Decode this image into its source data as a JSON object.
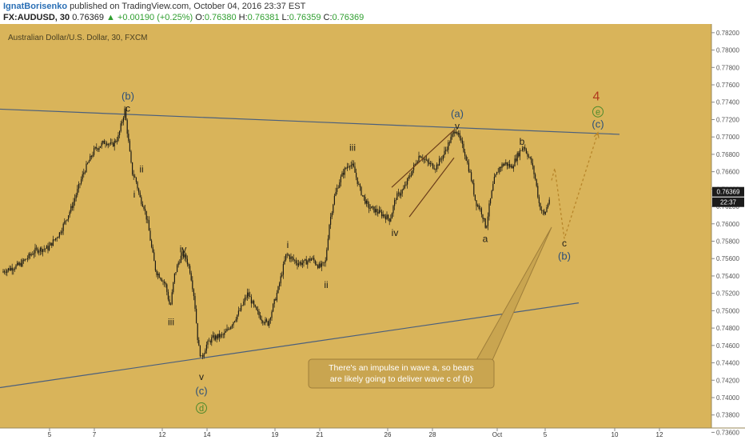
{
  "header": {
    "author": "IgnatBorisenko",
    "published": "published on TradingView.com, October 04, 2016 23:37 EST",
    "symbol": "FX:AUDUSD, 30",
    "last": "0.76369",
    "change": "▲ +0.00190 (+0.25%)",
    "open_label": "O:",
    "open": "0.76380",
    "high_label": "H:",
    "high": "0.76381",
    "low_label": "L:",
    "low": "0.76359",
    "close_label": "C:",
    "close": "0.76369"
  },
  "colors": {
    "background": "#d9b45a",
    "candle": "#1c1a14",
    "trendline": "#4a5f7d",
    "channel": "#6b3d1a",
    "projection": "#b8862a",
    "red_label": "#b03a1d",
    "green_label": "#4e8a2c",
    "blue_label": "#2b4f7a",
    "callout": "#c9a550"
  },
  "chart_data": {
    "type": "candlestick",
    "title": "Australian Dollar/U.S. Dollar, 30, FXCM",
    "ylim": [
      0.7365,
      0.783
    ],
    "x_ticks": [
      "5",
      "7",
      "12",
      "14",
      "19",
      "21",
      "26",
      "28",
      "Oct",
      "5",
      "10",
      "12"
    ],
    "y_ticks": [
      "0.78200",
      "0.78000",
      "0.77800",
      "0.77600",
      "0.77400",
      "0.77200",
      "0.77000",
      "0.76800",
      "0.76600",
      "0.76400",
      "0.76200",
      "0.76000",
      "0.75800",
      "0.75600",
      "0.75400",
      "0.75200",
      "0.75000",
      "0.74800",
      "0.74600",
      "0.74400",
      "0.74200",
      "0.74000",
      "0.73800",
      "0.73600"
    ],
    "price_path": [
      [
        0,
        0.7544
      ],
      [
        25,
        0.7553
      ],
      [
        45,
        0.757
      ],
      [
        60,
        0.7572
      ],
      [
        75,
        0.759
      ],
      [
        90,
        0.762
      ],
      [
        105,
        0.766
      ],
      [
        118,
        0.7685
      ],
      [
        132,
        0.7695
      ],
      [
        140,
        0.769
      ],
      [
        148,
        0.77
      ],
      [
        156,
        0.7731
      ],
      [
        160,
        0.77
      ],
      [
        165,
        0.766
      ],
      [
        170,
        0.765
      ],
      [
        175,
        0.763
      ],
      [
        180,
        0.762
      ],
      [
        185,
        0.76
      ],
      [
        190,
        0.757
      ],
      [
        195,
        0.7545
      ],
      [
        200,
        0.754
      ],
      [
        207,
        0.753
      ],
      [
        213,
        0.7503
      ],
      [
        218,
        0.754
      ],
      [
        223,
        0.7555
      ],
      [
        228,
        0.7565
      ],
      [
        233,
        0.756
      ],
      [
        238,
        0.7545
      ],
      [
        243,
        0.7515
      ],
      [
        248,
        0.746
      ],
      [
        252,
        0.7445
      ],
      [
        258,
        0.746
      ],
      [
        265,
        0.7468
      ],
      [
        272,
        0.747
      ],
      [
        280,
        0.7472
      ],
      [
        290,
        0.7485
      ],
      [
        300,
        0.75
      ],
      [
        310,
        0.752
      ],
      [
        320,
        0.75
      ],
      [
        328,
        0.749
      ],
      [
        335,
        0.7485
      ],
      [
        340,
        0.75
      ],
      [
        348,
        0.7525
      ],
      [
        358,
        0.7565
      ],
      [
        365,
        0.756
      ],
      [
        372,
        0.7555
      ],
      [
        380,
        0.7555
      ],
      [
        390,
        0.756
      ],
      [
        400,
        0.755
      ],
      [
        407,
        0.7555
      ],
      [
        412,
        0.76
      ],
      [
        418,
        0.763
      ],
      [
        425,
        0.765
      ],
      [
        430,
        0.766
      ],
      [
        437,
        0.767
      ],
      [
        442,
        0.7665
      ],
      [
        450,
        0.764
      ],
      [
        460,
        0.762
      ],
      [
        470,
        0.7615
      ],
      [
        480,
        0.761
      ],
      [
        488,
        0.7605
      ],
      [
        495,
        0.763
      ],
      [
        505,
        0.764
      ],
      [
        515,
        0.766
      ],
      [
        525,
        0.768
      ],
      [
        535,
        0.767
      ],
      [
        545,
        0.7665
      ],
      [
        555,
        0.768
      ],
      [
        565,
        0.77
      ],
      [
        570,
        0.771
      ],
      [
        576,
        0.7695
      ],
      [
        582,
        0.768
      ],
      [
        590,
        0.765
      ],
      [
        595,
        0.7625
      ],
      [
        602,
        0.7615
      ],
      [
        608,
        0.7595
      ],
      [
        612,
        0.762
      ],
      [
        618,
        0.765
      ],
      [
        625,
        0.7665
      ],
      [
        632,
        0.767
      ],
      [
        640,
        0.7665
      ],
      [
        648,
        0.768
      ],
      [
        655,
        0.769
      ],
      [
        660,
        0.768
      ],
      [
        665,
        0.767
      ],
      [
        670,
        0.765
      ],
      [
        675,
        0.762
      ],
      [
        681,
        0.761
      ],
      [
        686,
        0.7625
      ],
      [
        690,
        0.7637
      ]
    ],
    "wave_labels": [
      {
        "text": "(b)",
        "x": 160,
        "price": 0.7747,
        "color": "blue",
        "size": 13
      },
      {
        "text": "c",
        "x": 160,
        "price": 0.7733,
        "color": "dark",
        "size": 12
      },
      {
        "text": "ii",
        "x": 177,
        "price": 0.7663,
        "color": "dark",
        "size": 12
      },
      {
        "text": "i",
        "x": 168,
        "price": 0.7634,
        "color": "dark",
        "size": 12
      },
      {
        "text": "iv",
        "x": 229,
        "price": 0.7571,
        "color": "dark",
        "size": 12
      },
      {
        "text": "iii",
        "x": 214,
        "price": 0.7487,
        "color": "dark",
        "size": 12
      },
      {
        "text": "v",
        "x": 252,
        "price": 0.7424,
        "color": "dark",
        "size": 12
      },
      {
        "text": "(c)",
        "x": 252,
        "price": 0.7408,
        "color": "blue",
        "size": 13
      },
      {
        "text": "d",
        "x": 252,
        "price": 0.7388,
        "color": "green",
        "size": 11,
        "circle": true
      },
      {
        "text": "iii",
        "x": 441,
        "price": 0.7688,
        "color": "dark",
        "size": 12
      },
      {
        "text": "i",
        "x": 360,
        "price": 0.7576,
        "color": "dark",
        "size": 12
      },
      {
        "text": "ii",
        "x": 408,
        "price": 0.753,
        "color": "dark",
        "size": 12
      },
      {
        "text": "iv",
        "x": 494,
        "price": 0.759,
        "color": "dark",
        "size": 12
      },
      {
        "text": "(a)",
        "x": 572,
        "price": 0.7727,
        "color": "blue",
        "size": 13
      },
      {
        "text": "v",
        "x": 572,
        "price": 0.7713,
        "color": "dark",
        "size": 12
      },
      {
        "text": "b",
        "x": 653,
        "price": 0.7695,
        "color": "dark",
        "size": 12
      },
      {
        "text": "a",
        "x": 607,
        "price": 0.7583,
        "color": "dark",
        "size": 12
      },
      {
        "text": "c",
        "x": 706,
        "price": 0.7578,
        "color": "dark",
        "size": 12
      },
      {
        "text": "(b)",
        "x": 706,
        "price": 0.7563,
        "color": "blue",
        "size": 13
      },
      {
        "text": "4",
        "x": 746,
        "price": 0.7747,
        "color": "red",
        "size": 16
      },
      {
        "text": "e",
        "x": 748,
        "price": 0.7729,
        "color": "green",
        "size": 11,
        "circle": true
      },
      {
        "text": "(c)",
        "x": 748,
        "price": 0.7715,
        "color": "blue",
        "size": 13
      }
    ],
    "trendlines": [
      {
        "x1": 0,
        "p1": 0.7732,
        "x2": 775,
        "p2": 0.7703,
        "color": "trendline"
      },
      {
        "x1": 0,
        "p1": 0.74115,
        "x2": 724,
        "p2": 0.7509,
        "color": "trendline"
      }
    ],
    "channel_lines": [
      {
        "x1": 490,
        "p1": 0.7642,
        "x2": 568,
        "p2": 0.7708
      },
      {
        "x1": 512,
        "p1": 0.7608,
        "x2": 568,
        "p2": 0.7676
      }
    ],
    "projection": [
      [
        690,
        0.765
      ],
      [
        694,
        0.7664
      ],
      [
        706,
        0.7583
      ],
      [
        748,
        0.7705
      ]
    ],
    "callout": {
      "line1": "There's an impulse in wave a, so bears",
      "line2": "are likely going to deliver wave c of (b)"
    },
    "last_price_label": "0.76369",
    "countdown_label": "22:37"
  }
}
